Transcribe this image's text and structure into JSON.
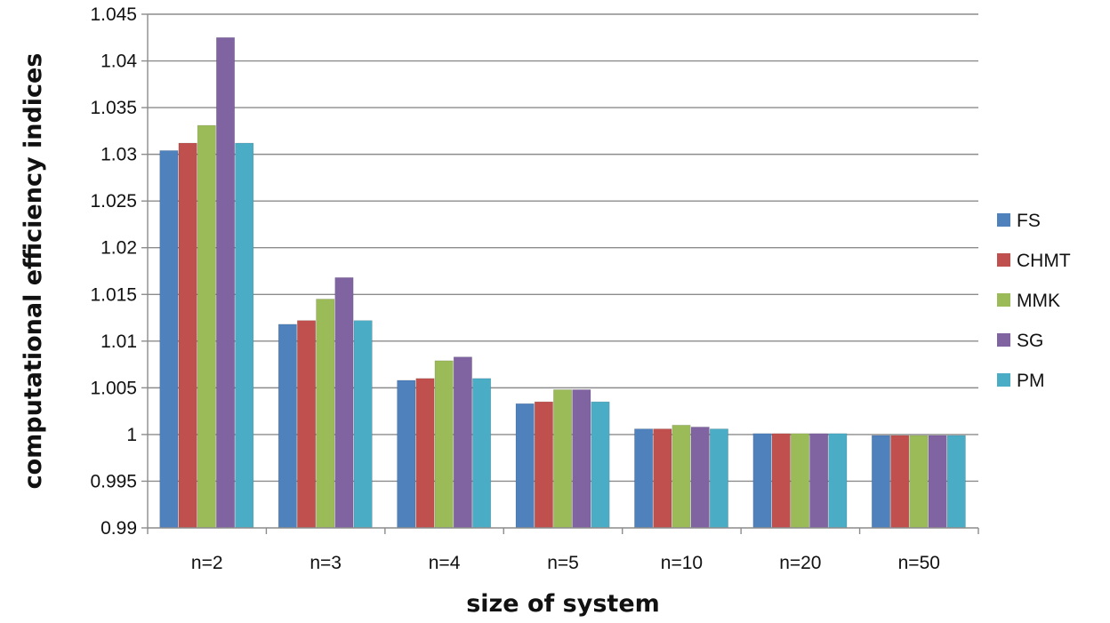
{
  "chart_data": {
    "type": "bar",
    "title": "",
    "xlabel": "size of system",
    "ylabel": "computational efficiency indices",
    "ylim": [
      0.99,
      1.045
    ],
    "yticks": [
      "0.99",
      "0.995",
      "1",
      "1.005",
      "1.01",
      "1.015",
      "1.02",
      "1.025",
      "1.03",
      "1.035",
      "1.04",
      "1.045"
    ],
    "grid": "horizontal",
    "legend_position": "right",
    "categories": [
      "n=2",
      "n=3",
      "n=4",
      "n=5",
      "n=10",
      "n=20",
      "n=50"
    ],
    "series": [
      {
        "name": "FS",
        "color": "#4f81bd",
        "values": [
          1.0304,
          1.0118,
          1.0058,
          1.0033,
          1.0006,
          1.0001,
          0.9999
        ]
      },
      {
        "name": "CHMT",
        "color": "#c0504d",
        "values": [
          1.0312,
          1.0122,
          1.006,
          1.0035,
          1.0006,
          1.0001,
          0.9999
        ]
      },
      {
        "name": "MMK",
        "color": "#9bbb59",
        "values": [
          1.0331,
          1.0145,
          1.0079,
          1.0048,
          1.001,
          1.0001,
          0.9999
        ]
      },
      {
        "name": "SG",
        "color": "#8064a2",
        "values": [
          1.0425,
          1.0168,
          1.0083,
          1.0048,
          1.0008,
          1.0001,
          0.9999
        ]
      },
      {
        "name": "PM",
        "color": "#4bacc6",
        "values": [
          1.0312,
          1.0122,
          1.006,
          1.0035,
          1.0006,
          1.0001,
          0.9999
        ]
      }
    ]
  }
}
